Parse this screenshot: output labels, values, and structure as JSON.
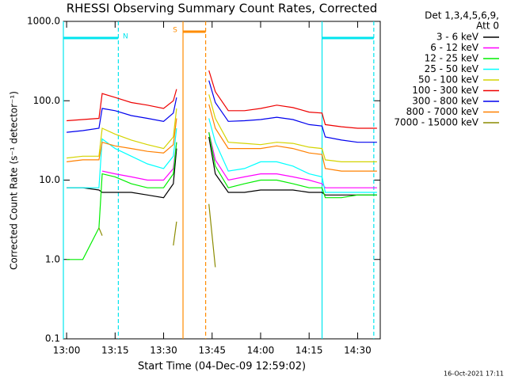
{
  "chart_data": {
    "type": "line",
    "title": "RHESSI Observing Summary Count Rates, Corrected",
    "xlabel": "Start Time (04-Dec-09 12:59:02)",
    "ylabel": "Corrected Count Rate (s⁻¹ detector⁻¹)",
    "footer": "16-Oct-2021 17:11",
    "legend_header": [
      "Det 1,3,4,5,6,9,",
      "Att 0"
    ],
    "legend": "right",
    "log_y": true,
    "xlim": [
      "12:59",
      "14:37"
    ],
    "xticks": [
      "13:00",
      "13:15",
      "13:30",
      "13:45",
      "14:00",
      "14:15",
      "14:30"
    ],
    "ylim": [
      0.1,
      1000
    ],
    "yticks": [
      {
        "value": 0.1,
        "label": "0.1"
      },
      {
        "value": 1,
        "label": "1.0"
      },
      {
        "value": 10,
        "label": "10.0"
      },
      {
        "value": 100,
        "label": "100.0"
      },
      {
        "value": 1000,
        "label": "1000.0"
      }
    ],
    "intervals": [
      {
        "label": "N",
        "start": "12:59",
        "end": "13:16",
        "color": "#00e5ee"
      },
      {
        "label": "S",
        "start": "13:36",
        "end": "13:43",
        "color": "#ff8c00"
      },
      {
        "start": "14:19",
        "end": "14:35",
        "color": "#00e5ee"
      }
    ],
    "x": [
      "13:00",
      "13:05",
      "13:10",
      "13:11",
      "13:15",
      "13:20",
      "13:25",
      "13:30",
      "13:33",
      "13:34",
      "13:38",
      "13:44",
      "13:46",
      "13:50",
      "13:55",
      "14:00",
      "14:05",
      "14:10",
      "14:15",
      "14:19",
      "14:20",
      "14:25",
      "14:30",
      "14:36"
    ],
    "series": [
      {
        "name": "3 - 6 keV",
        "color": "#000000",
        "values": [
          8,
          8,
          7.5,
          7,
          7,
          7,
          6.5,
          6,
          9,
          25,
          null,
          35,
          12,
          7,
          7,
          7.5,
          7.5,
          7.5,
          7,
          7,
          6.5,
          6.5,
          6.5,
          6.5
        ]
      },
      {
        "name": "6 - 12 keV",
        "color": "#ff00ff",
        "values": [
          null,
          null,
          null,
          13,
          12,
          11,
          10,
          10,
          14,
          30,
          null,
          40,
          18,
          10,
          11,
          12,
          12,
          11,
          10,
          9,
          8,
          8,
          8,
          8
        ]
      },
      {
        "name": "12 - 25 keV",
        "color": "#00ee00",
        "values": [
          1,
          1,
          2.5,
          12,
          11,
          9,
          8,
          8,
          12,
          30,
          null,
          40,
          15,
          8,
          9,
          10,
          10,
          9,
          8,
          8,
          6,
          6,
          6.5,
          6.5
        ]
      },
      {
        "name": "25 - 50 keV",
        "color": "#00ffff",
        "values": [
          8,
          8,
          8,
          33,
          25,
          20,
          16,
          14,
          20,
          45,
          null,
          60,
          30,
          13,
          14,
          17,
          17,
          15,
          12,
          11,
          7,
          7,
          7,
          7
        ]
      },
      {
        "name": "50 - 100 keV",
        "color": "#d4d400",
        "values": [
          19,
          20,
          20,
          45,
          38,
          32,
          28,
          25,
          35,
          80,
          null,
          120,
          60,
          30,
          29,
          28,
          30,
          29,
          26,
          25,
          18,
          17,
          17,
          17
        ]
      },
      {
        "name": "100 - 300 keV",
        "color": "#ee0000",
        "values": [
          56,
          58,
          60,
          123,
          110,
          95,
          88,
          80,
          100,
          140,
          null,
          240,
          130,
          75,
          75,
          80,
          88,
          82,
          72,
          70,
          50,
          47,
          45,
          45
        ]
      },
      {
        "name": "300 - 800 keV",
        "color": "#0000ee",
        "values": [
          40,
          42,
          45,
          80,
          75,
          65,
          60,
          55,
          70,
          110,
          null,
          180,
          95,
          55,
          56,
          58,
          62,
          58,
          50,
          48,
          35,
          32,
          30,
          30
        ]
      },
      {
        "name": "800 - 7000 keV",
        "color": "#ff8000",
        "values": [
          17,
          18,
          18,
          30,
          27,
          25,
          23,
          22,
          28,
          60,
          null,
          90,
          45,
          25,
          25,
          25,
          27,
          25,
          22,
          21,
          14,
          13,
          13,
          13
        ]
      },
      {
        "name": "7000 - 15000 keV",
        "color": "#8b8b00",
        "values": [
          null,
          null,
          2.5,
          2,
          null,
          null,
          null,
          null,
          1.5,
          3,
          null,
          5,
          0.8,
          null,
          null,
          null,
          null,
          null,
          null,
          null,
          null,
          null,
          null,
          null
        ]
      }
    ]
  }
}
